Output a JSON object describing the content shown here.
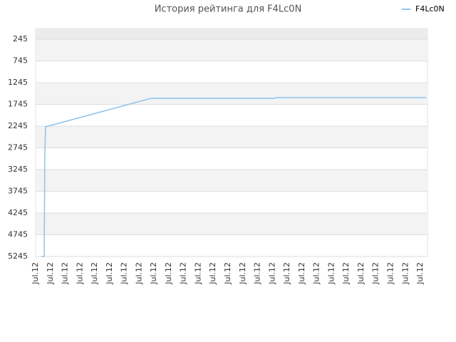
{
  "chart_data": {
    "type": "line",
    "title": "История рейтинга для F4Lc0N",
    "categories": [
      "Jul.12",
      "Jul.12",
      "Jul.12",
      "Jul.12",
      "Jul.12",
      "Jul.12",
      "Jul.12",
      "Jul.12",
      "Jul.12",
      "Jul.12",
      "Jul.12",
      "Jul.12",
      "Jul.12",
      "Jul.12",
      "Jul.12",
      "Jul.12",
      "Jul.12",
      "Jul.12",
      "Jul.12",
      "Jul.12",
      "Jul.12",
      "Jul.12",
      "Jul.12",
      "Jul.12",
      "Jul.12",
      "Jul.12",
      "Jul.12"
    ],
    "xlim": [
      0,
      26.48
    ],
    "series": [
      {
        "name": "F4Lc0N",
        "color": "#8ec3ec",
        "x": [
          0.39,
          0.58,
          0.62,
          0.67,
          7.8,
          16.13,
          16.2,
          26.4
        ],
        "values": [
          5245,
          5245,
          2870,
          2262,
          1606,
          1606,
          1590,
          1590
        ]
      }
    ],
    "ylim": [
      5245,
      0
    ],
    "yticks": [
      245,
      745,
      1245,
      1745,
      2245,
      2745,
      3245,
      3745,
      4245,
      4745,
      5245
    ],
    "grid": true,
    "legend": "top-right"
  }
}
